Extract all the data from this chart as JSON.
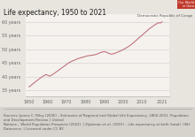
{
  "title": "Life expectancy, 1950 to 2021",
  "title_fontsize": 5.5,
  "bg_color": "#e8e4de",
  "plot_bg_color": "#f5f2ee",
  "line_color": "#c0737a",
  "label_text": "Democratic Republic of Congo",
  "label_fontsize": 3.8,
  "owid_box_color": "#c0392b",
  "years": [
    1950,
    1951,
    1952,
    1953,
    1954,
    1955,
    1956,
    1957,
    1958,
    1959,
    1960,
    1961,
    1962,
    1963,
    1964,
    1965,
    1966,
    1967,
    1968,
    1969,
    1970,
    1971,
    1972,
    1973,
    1974,
    1975,
    1976,
    1977,
    1978,
    1979,
    1980,
    1981,
    1982,
    1983,
    1984,
    1985,
    1986,
    1987,
    1988,
    1989,
    1990,
    1991,
    1992,
    1993,
    1994,
    1995,
    1996,
    1997,
    1998,
    1999,
    2000,
    2001,
    2002,
    2003,
    2004,
    2005,
    2006,
    2007,
    2008,
    2009,
    2010,
    2011,
    2012,
    2013,
    2014,
    2015,
    2016,
    2017,
    2018,
    2019,
    2020,
    2021
  ],
  "life_expectancy": [
    36.3,
    36.8,
    37.4,
    37.9,
    38.5,
    39.0,
    39.5,
    40.0,
    40.4,
    40.8,
    40.5,
    40.2,
    40.6,
    41.0,
    41.5,
    42.0,
    42.5,
    43.0,
    43.5,
    44.0,
    44.5,
    45.0,
    45.4,
    45.7,
    46.0,
    46.3,
    46.6,
    46.8,
    47.0,
    47.2,
    47.4,
    47.6,
    47.7,
    47.8,
    47.9,
    48.0,
    48.2,
    48.5,
    48.8,
    49.0,
    49.2,
    49.0,
    48.7,
    48.4,
    48.2,
    48.4,
    48.6,
    48.9,
    49.2,
    49.5,
    49.8,
    50.2,
    50.6,
    51.0,
    51.5,
    52.0,
    52.6,
    53.2,
    53.8,
    54.4,
    55.0,
    55.6,
    56.2,
    56.8,
    57.4,
    57.9,
    58.4,
    58.9,
    59.3,
    59.7,
    59.6,
    60.0
  ],
  "yticks": [
    35,
    40,
    45,
    50,
    55,
    60
  ],
  "ytick_labels": [
    "35 years",
    "40 years",
    "45 years",
    "50 years",
    "55 years",
    "60 years"
  ],
  "xticks": [
    1950,
    1960,
    1970,
    1980,
    1990,
    2000,
    2010,
    2021
  ],
  "xtick_labels": [
    "1950",
    "1960",
    "1970",
    "1980",
    "1990",
    "2000",
    "2010",
    "2021"
  ],
  "ylim": [
    33,
    63
  ],
  "xlim": [
    1948,
    2025
  ],
  "tick_fontsize": 3.5,
  "footnote": "Sources: James C. Riley (2005) – Estimates of Regional and Global Life Expectancy, 1800-2001. Population and Development Review. | United\nNations – World Population Prospects (2022). | Zijdeman et al. (2015) – Life expectancy at birth (total). IISH Dataverse. | Licensed under CC BY.",
  "footnote_fontsize": 2.8,
  "footnote_bg": "#d6d2cc"
}
